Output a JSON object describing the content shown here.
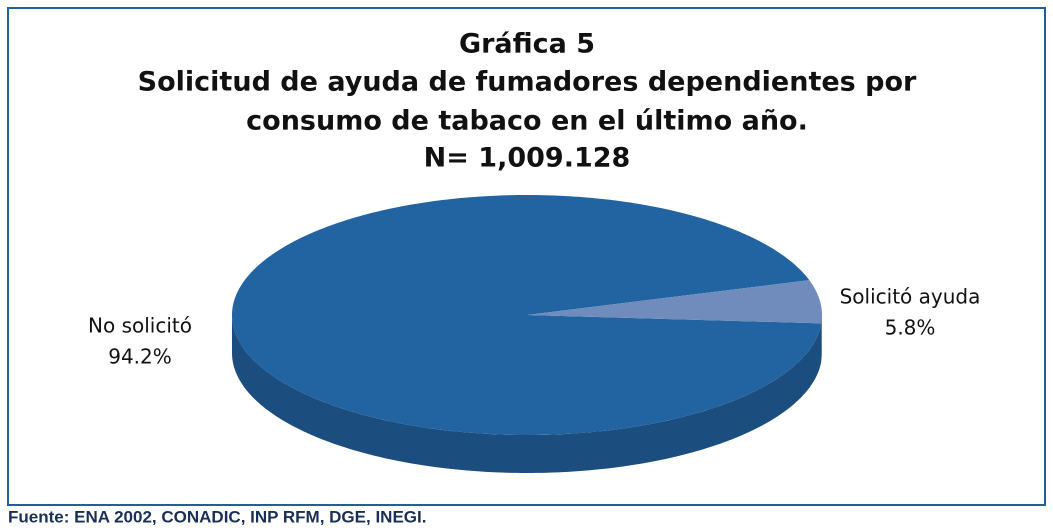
{
  "chart_data": {
    "type": "pie",
    "title": [
      "Gráfica 5",
      "Solicitud de ayuda de fumadores dependientes por",
      "consumo de tabaco en el último año.",
      "N= 1,009.128"
    ],
    "categories": [
      "No solicitó",
      "Solicitó ayuda"
    ],
    "values": [
      94.2,
      5.8
    ],
    "value_labels": [
      "94.2%",
      "5.8%"
    ],
    "colors": [
      "#2263a2",
      "#6f8cbc"
    ],
    "source": "Fuente: ENA 2002, CONADIC, INP RFM, DGE, INEGI."
  }
}
